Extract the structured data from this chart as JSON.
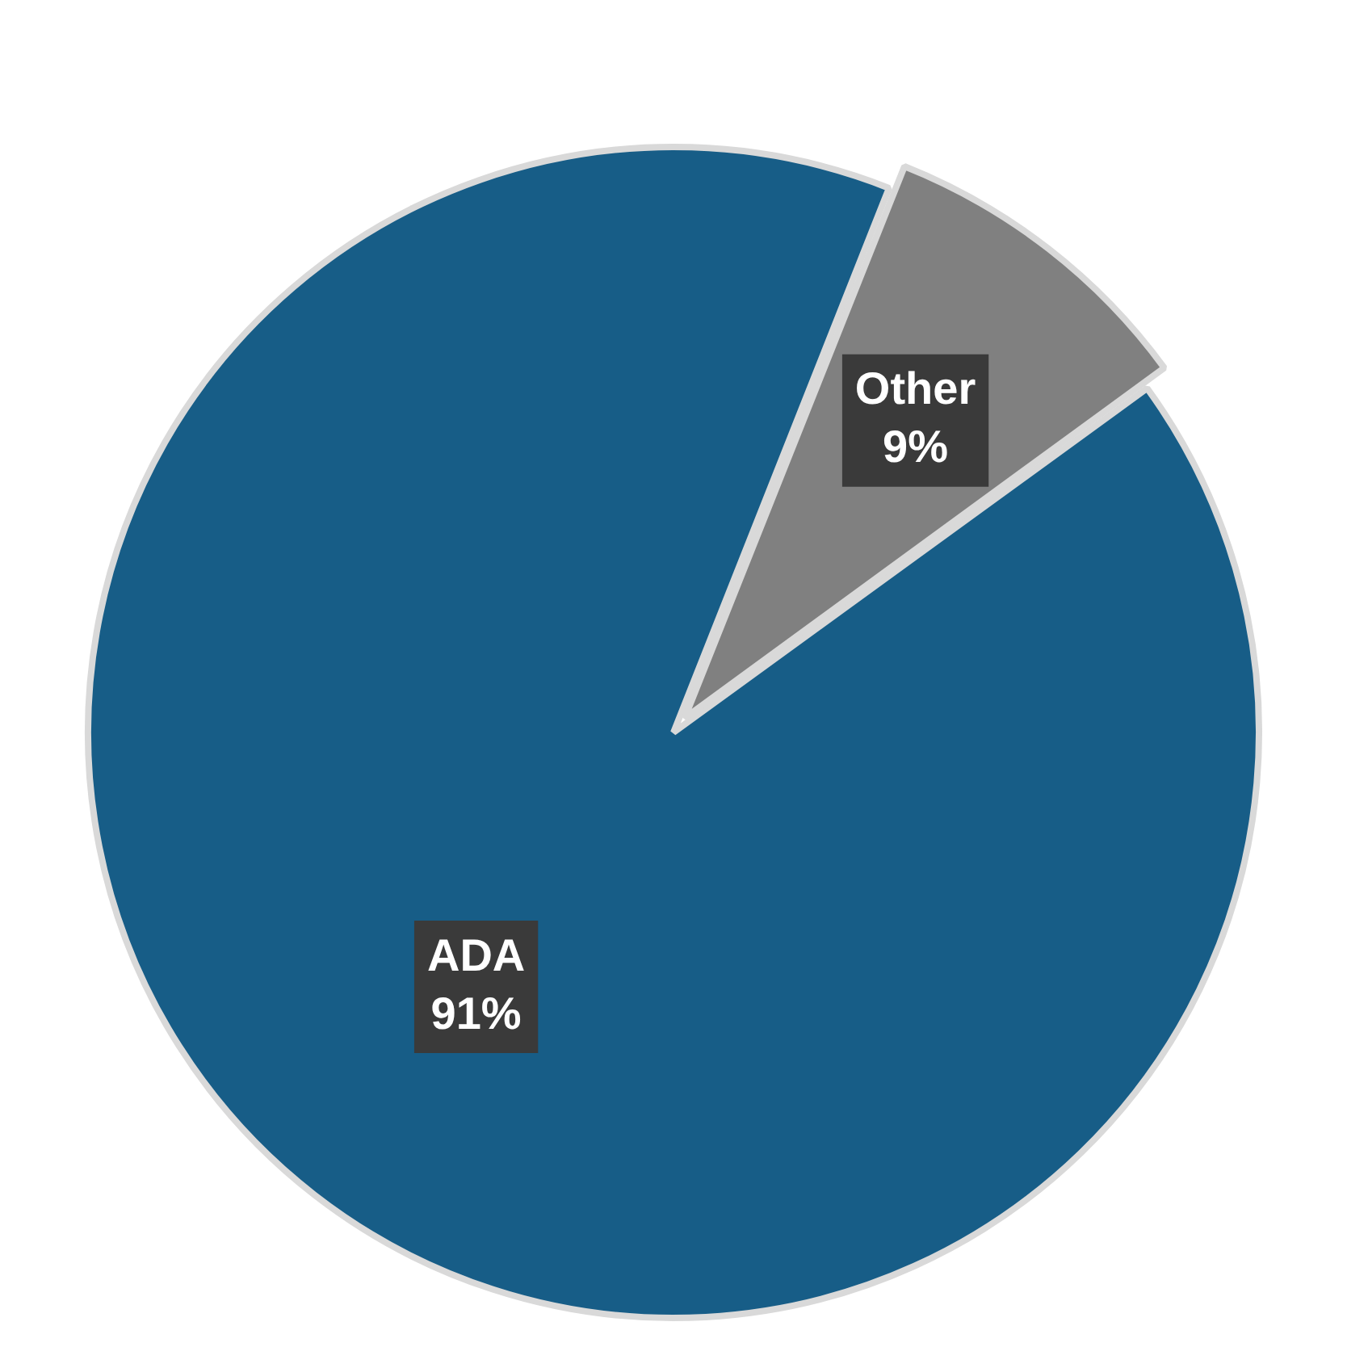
{
  "chart_data": {
    "type": "pie",
    "categories": [
      "ADA",
      "Other"
    ],
    "values": [
      91,
      9
    ],
    "colors": [
      "#175d87",
      "#808080"
    ],
    "value_labels": [
      "91%",
      "9%"
    ],
    "legend": false
  }
}
